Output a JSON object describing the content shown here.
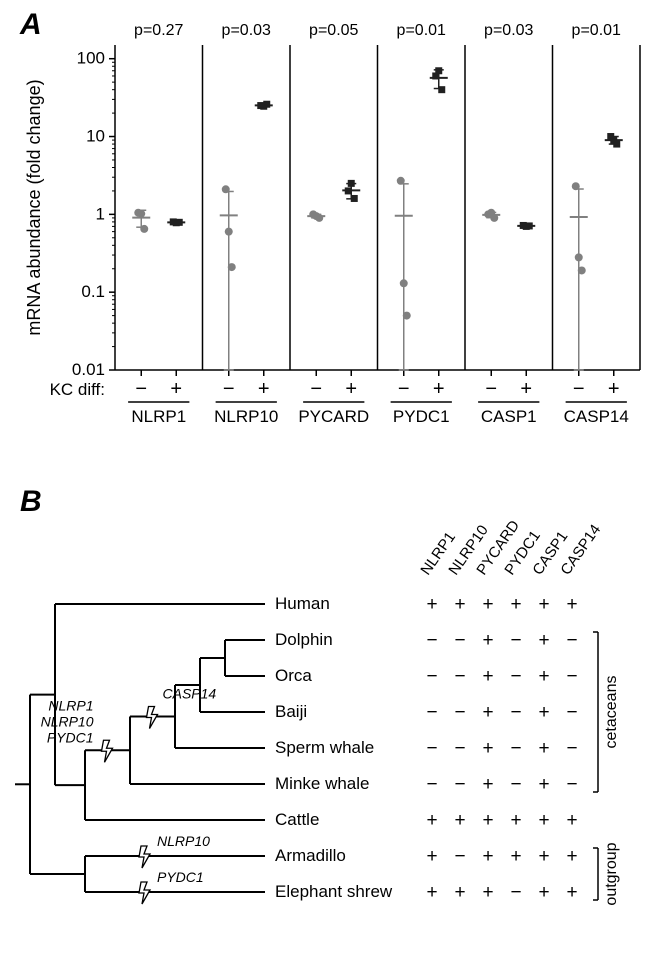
{
  "panelA": {
    "label": "A",
    "yAxisLabel": "mRNA abundance (fold change)",
    "xAxisLabel": "KC diff:",
    "xConditions": [
      "−",
      "+"
    ],
    "genes": [
      "NLRP1",
      "NLRP10",
      "PYCARD",
      "PYDC1",
      "CASP1",
      "CASP14"
    ],
    "pValues": [
      "p=0.27",
      "p=0.03",
      "p=0.05",
      "p=0.01",
      "p=0.03",
      "p=0.01"
    ],
    "yTicks": [
      0.01,
      0.1,
      1,
      10,
      100
    ],
    "yTickLabels": [
      "0.01",
      "0.1",
      "1",
      "10",
      "100"
    ],
    "yLim": [
      0.01,
      150
    ],
    "colors": {
      "minus": "#808080",
      "plus": "#202020"
    },
    "data": {
      "NLRP1": {
        "minus": [
          1.05,
          1.02,
          0.65
        ],
        "plus": [
          0.8,
          0.78,
          0.79
        ]
      },
      "NLRP10": {
        "minus": [
          2.1,
          0.6,
          0.21
        ],
        "plus": [
          25.0,
          24.5,
          26.0
        ]
      },
      "PYCARD": {
        "minus": [
          1.0,
          0.95,
          0.9
        ],
        "plus": [
          2.0,
          2.5,
          1.6
        ]
      },
      "PYDC1": {
        "minus": [
          2.7,
          0.13,
          0.05
        ],
        "plus": [
          60.0,
          70.0,
          40.0
        ]
      },
      "CASP1": {
        "minus": [
          1.0,
          1.05,
          0.9
        ],
        "plus": [
          0.72,
          0.7,
          0.71
        ]
      },
      "CASP14": {
        "minus": [
          2.3,
          0.28,
          0.19
        ],
        "plus": [
          10.0,
          9.0,
          8.0
        ]
      }
    }
  },
  "panelB": {
    "label": "B",
    "genes": [
      "NLRP1",
      "NLRP10",
      "PYCARD",
      "PYDC1",
      "CASP1",
      "CASP14"
    ],
    "species": [
      "Human",
      "Dolphin",
      "Orca",
      "Baiji",
      "Sperm whale",
      "Minke whale",
      "Cattle",
      "Armadillo",
      "Elephant shrew"
    ],
    "groups": {
      "cetaceans": [
        "Dolphin",
        "Orca",
        "Baiji",
        "Sperm whale",
        "Minke whale"
      ],
      "outgroup": [
        "Armadillo",
        "Elephant shrew"
      ]
    },
    "matrix": {
      "Human": [
        "+",
        "+",
        "+",
        "+",
        "+",
        "+"
      ],
      "Dolphin": [
        "−",
        "−",
        "+",
        "−",
        "+",
        "−"
      ],
      "Orca": [
        "−",
        "−",
        "+",
        "−",
        "+",
        "−"
      ],
      "Baiji": [
        "−",
        "−",
        "+",
        "−",
        "+",
        "−"
      ],
      "Sperm whale": [
        "−",
        "−",
        "+",
        "−",
        "+",
        "−"
      ],
      "Minke whale": [
        "−",
        "−",
        "+",
        "−",
        "+",
        "−"
      ],
      "Cattle": [
        "+",
        "+",
        "+",
        "+",
        "+",
        "+"
      ],
      "Armadillo": [
        "+",
        "−",
        "+",
        "+",
        "+",
        "+"
      ],
      "Elephant shrew": [
        "+",
        "+",
        "+",
        "−",
        "+",
        "+"
      ]
    },
    "lossEvents": [
      {
        "labels": [
          "NLRP1",
          "NLRP10",
          "PYDC1"
        ],
        "labelStyle": "italic"
      },
      {
        "labels": [
          "CASP14"
        ],
        "labelStyle": "italic"
      },
      {
        "labels": [
          "NLRP10"
        ],
        "labelStyle": "italic"
      },
      {
        "labels": [
          "PYDC1"
        ],
        "labelStyle": "italic"
      }
    ]
  }
}
